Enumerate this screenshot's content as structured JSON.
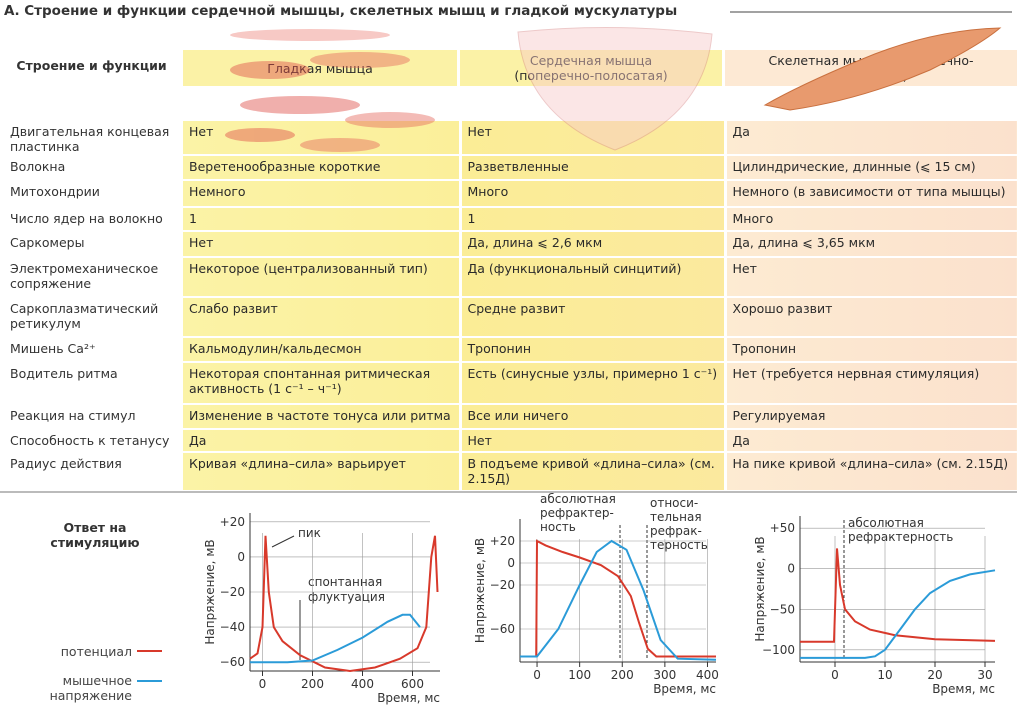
{
  "title": "А. Строение и функции сердечной мышцы, скелетных мышц и гладкой мускулатуры",
  "table": {
    "corner": "Строение и функции",
    "columns": [
      "Гладкая мышца",
      "Сердечная мышца (поперечно-полосатая)",
      "Скелетная мышца (поперечно-полосатая)"
    ],
    "rows": [
      [
        "Двигательная концевая пластинка",
        "Нет",
        "Нет",
        "Да"
      ],
      [
        "Волокна",
        "Веретенообразные короткие",
        "Разветвленные",
        "Цилиндрические, длинные (⩽ 15 см)"
      ],
      [
        "Митохондрии",
        "Немного",
        "Много",
        "Немного (в зависимости от типа мышцы)"
      ],
      [
        "Число ядер на волокно",
        "1",
        "1",
        "Много"
      ],
      [
        "Саркомеры",
        "Нет",
        "Да, длина ⩽ 2,6 мкм",
        "Да, длина ⩽ 3,65 мкм"
      ],
      [
        "Электромеханическое сопряжение",
        "Некоторое (централизованный тип)",
        "Да (функциональный синцитий)",
        "Нет"
      ],
      [
        "Саркоплазматический ретикулум",
        "Слабо развит",
        "Средне развит",
        "Хорошо развит"
      ],
      [
        "Мишень Ca²⁺",
        "Кальмодулин/кальдесмон",
        "Тропонин",
        "Тропонин"
      ],
      [
        "Водитель ритма",
        "Некоторая спонтанная ритмическая активность (1 с⁻¹ – ч⁻¹)",
        "Есть (синусные узлы, примерно 1 с⁻¹)",
        "Нет (требуется нервная стимуляция)"
      ],
      [
        "Реакция на стимул",
        "Изменение в частоте тонуса или ритма",
        "Все или ничего",
        "Регулируемая"
      ],
      [
        "Способность к тетанусу",
        "Да",
        "Нет",
        "Да"
      ],
      [
        "Радиус действия",
        "Кривая «длина–сила» варьирует",
        "В подъеме кривой «длина–сила» (см. 2.15Д)",
        "На пике кривой «длина–сила» (см. 2.15Д)"
      ]
    ]
  },
  "response": {
    "label": "Ответ на стимуляцию",
    "legend": [
      {
        "name": "потенциал",
        "color": "#d8392b"
      },
      {
        "name": "мышечное напряжение",
        "color": "#2b9bd8"
      }
    ],
    "charts": [
      {
        "type": "line",
        "ylabel": "Напряжение, мВ",
        "xlabel": "Время, мс",
        "xlim": [
          -50,
          710
        ],
        "ylim": [
          -65,
          25
        ],
        "xticks": [
          0,
          200,
          400,
          600
        ],
        "yticks": [
          {
            "value": 20,
            "label": "+20"
          },
          0,
          {
            "value": -20,
            "label": "−20"
          },
          {
            "value": -40,
            "label": "−40"
          },
          {
            "value": -60,
            "label": "−60"
          }
        ],
        "annotations": [
          [
            "пик"
          ],
          [
            "спонтанная",
            "флуктуация"
          ]
        ],
        "series": [
          {
            "color": "#d8392b",
            "x": [
              -50,
              -20,
              0,
              12,
              25,
              45,
              80,
              150,
              250,
              350,
              450,
              550,
              620,
              655,
              675,
              690,
              700
            ],
            "values": [
              -58,
              -55,
              -40,
              12,
              -20,
              -40,
              -48,
              -56,
              -63,
              -65,
              -63,
              -58,
              -52,
              -40,
              0,
              12,
              -20
            ]
          },
          {
            "color": "#2b9bd8",
            "x": [
              -50,
              100,
              200,
              300,
              400,
              500,
              560,
              590,
              630
            ],
            "values": [
              -60,
              -60,
              -59,
              -53,
              -46,
              -37,
              -33,
              -33,
              -40
            ]
          }
        ]
      },
      {
        "type": "line",
        "ylabel": "Напряжение, мВ",
        "xlabel": "Время, мс",
        "xlim": [
          -40,
          420
        ],
        "ylim": [
          -90,
          40
        ],
        "xticks": [
          0,
          100,
          200,
          300,
          400
        ],
        "yticks": [
          {
            "value": 20,
            "label": "+20"
          },
          0,
          {
            "value": -20,
            "label": "−20"
          },
          {
            "value": -60,
            "label": "−60"
          }
        ],
        "annotations": [
          [
            "абсолютная",
            "рефрактер-",
            "ность"
          ],
          [
            "относи-",
            "тельная",
            "рефрак-",
            "терность"
          ]
        ],
        "series": [
          {
            "color": "#d8392b",
            "x": [
              -40,
              -2,
              0,
              20,
              60,
              100,
              150,
              190,
              220,
              240,
              260,
              280,
              420
            ],
            "values": [
              -85,
              -85,
              20,
              16,
              10,
              5,
              -2,
              -12,
              -30,
              -55,
              -78,
              -85,
              -85
            ]
          },
          {
            "color": "#2b9bd8",
            "x": [
              -40,
              0,
              50,
              100,
              140,
              175,
              210,
              250,
              290,
              330,
              420
            ],
            "values": [
              -85,
              -85,
              -60,
              -20,
              10,
              20,
              12,
              -25,
              -70,
              -87,
              -88
            ]
          }
        ]
      },
      {
        "type": "line",
        "ylabel": "Напряжение, мВ",
        "xlabel": "Время, мс",
        "xlim": [
          -7,
          32
        ],
        "ylim": [
          -115,
          65
        ],
        "xticks": [
          0,
          10,
          20,
          30
        ],
        "yticks": [
          {
            "value": 50,
            "label": "+50"
          },
          0,
          {
            "value": -50,
            "label": "−50"
          },
          {
            "value": -100,
            "label": "−100"
          }
        ],
        "annotations": [
          [
            "абсолютная",
            "рефрактерность"
          ]
        ],
        "series": [
          {
            "color": "#d8392b",
            "x": [
              -7,
              -0.2,
              0.4,
              1,
              2,
              4,
              7,
              12,
              20,
              32
            ],
            "values": [
              -90,
              -90,
              25,
              -20,
              -50,
              -65,
              -75,
              -82,
              -87,
              -89
            ]
          },
          {
            "color": "#2b9bd8",
            "x": [
              -7,
              6,
              8,
              10,
              13,
              16,
              19,
              23,
              27,
              32
            ],
            "values": [
              -110,
              -110,
              -108,
              -100,
              -75,
              -50,
              -30,
              -15,
              -7,
              -2
            ]
          }
        ]
      }
    ]
  }
}
